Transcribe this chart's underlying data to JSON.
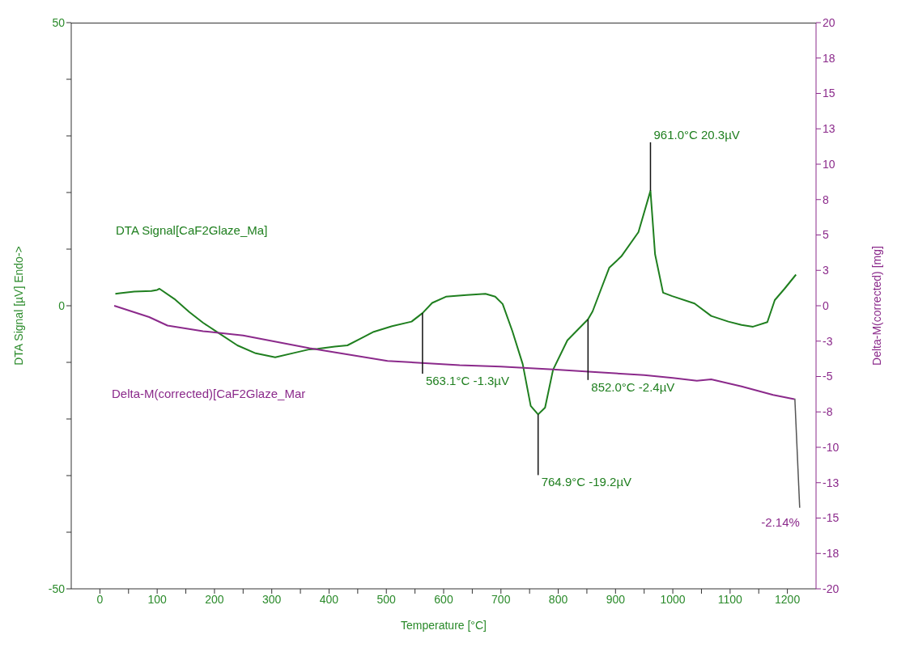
{
  "chart_data": {
    "type": "line",
    "xlabel": "Temperature  [°C]",
    "ylabel": "DTA Signal  [µV] Endo->",
    "y2label": "Delta-M(corrected)  [mg]",
    "xlim": [
      -50,
      1250
    ],
    "xticks": [
      0,
      {
        "value": 50,
        "label": null
      },
      100,
      {
        "value": 150,
        "label": null
      },
      200,
      {
        "value": 250,
        "label": null
      },
      300,
      {
        "value": 350,
        "label": null
      },
      400,
      {
        "value": 450,
        "label": null
      },
      500,
      {
        "value": 550,
        "label": null
      },
      600,
      {
        "value": 650,
        "label": null
      },
      700,
      {
        "value": 750,
        "label": null
      },
      800,
      {
        "value": 850,
        "label": null
      },
      900,
      {
        "value": 950,
        "label": null
      },
      1000,
      {
        "value": 1050,
        "label": null
      },
      1100,
      {
        "value": 1150,
        "label": null
      },
      1200
    ],
    "ylim": [
      -50,
      50
    ],
    "yticks": [
      -50,
      {
        "value": -40,
        "label": null
      },
      {
        "value": -30,
        "label": null
      },
      {
        "value": -20,
        "label": null
      },
      {
        "value": -10,
        "label": null
      },
      0,
      {
        "value": 10,
        "label": null
      },
      {
        "value": 20,
        "label": null
      },
      {
        "value": 30,
        "label": null
      },
      {
        "value": 40,
        "label": null
      },
      50
    ],
    "y2lim": [
      -20,
      20
    ],
    "y2ticks": [
      -20,
      {
        "value": -17.5,
        "label": "-18"
      },
      -15,
      {
        "value": -12.5,
        "label": "-13"
      },
      -10,
      {
        "value": -7.5,
        "label": "-8"
      },
      -5,
      {
        "value": -2.5,
        "label": "-3"
      },
      0,
      {
        "value": 2.5,
        "label": "3"
      },
      5,
      {
        "value": 7.5,
        "label": "8"
      },
      10,
      {
        "value": 12.5,
        "label": "13"
      },
      15,
      {
        "value": 17.5,
        "label": "18"
      },
      20
    ],
    "grid": false,
    "legend": false,
    "marker": "none",
    "line_style": "solid",
    "series": [
      {
        "name": "DTA Signal[CaF2Glaze_Ma]",
        "color": "#1f7f1f",
        "x": [
          27,
          35,
          60,
          90,
          100,
          104,
          130,
          156,
          180,
          207,
          240,
          272,
          306,
          340,
          366,
          380,
          410,
          432,
          455,
          478,
          510,
          544,
          563.1,
          580,
          604,
          640,
          673,
          690,
          703,
          720,
          738,
          752,
          764.9,
          777,
          791,
          816,
          852,
          860,
          875,
          889,
          910,
          940,
          961,
          969,
          983,
          999,
          1038,
          1067,
          1097,
          1120,
          1140,
          1165,
          1178,
          1195,
          1215
        ],
        "values": [
          2.1,
          2.2,
          2.5,
          2.6,
          2.8,
          3,
          1.2,
          -1.1,
          -3,
          -4.8,
          -7,
          -8.4,
          -9.1,
          -8.3,
          -7.7,
          -7.6,
          -7.2,
          -7,
          -5.8,
          -4.6,
          -3.6,
          -2.8,
          -1.3,
          0.5,
          1.6,
          1.9,
          2.1,
          1.6,
          0.3,
          -4.5,
          -10.3,
          -17.7,
          -19.2,
          -18,
          -11.3,
          -6.1,
          -2.4,
          -1,
          3,
          6.7,
          8.7,
          13,
          20.3,
          9.1,
          2.3,
          1.7,
          0.4,
          -1.8,
          -2.8,
          -3.4,
          -3.7,
          -2.9,
          1,
          3,
          5.5
        ]
      },
      {
        "name": "Delta-M(corrected)[CaF2Glaze_Mar",
        "color": "#8b2a8b",
        "axis": "y2",
        "x": [
          25,
          86,
          118,
          180,
          250,
          366,
          502,
          628,
          700,
          791,
          870,
          950,
          1000,
          1042,
          1067,
          1120,
          1175,
          1212
        ],
        "values": [
          0,
          -0.8,
          -1.4,
          -1.8,
          -2.1,
          -3,
          -3.9,
          -4.2,
          -4.3,
          -4.5,
          -4.7,
          -4.9,
          -5.1,
          -5.3,
          -5.2,
          -5.7,
          -6.3,
          -6.6
        ]
      }
    ],
    "annotations": [
      {
        "text": "563.1°C  -1.3µV",
        "x": 563.1,
        "y": -1.3
      },
      {
        "text": "764.9°C  -19.2µV",
        "x": 764.9,
        "y": -19.2
      },
      {
        "text": "852.0°C  -2.4µV",
        "x": 852,
        "y": -2.4
      },
      {
        "text": "961.0°C  20.3µV",
        "x": 961,
        "y": 20.3
      },
      {
        "text": "-2.14%",
        "x": 1213,
        "y": -16.4
      }
    ]
  }
}
